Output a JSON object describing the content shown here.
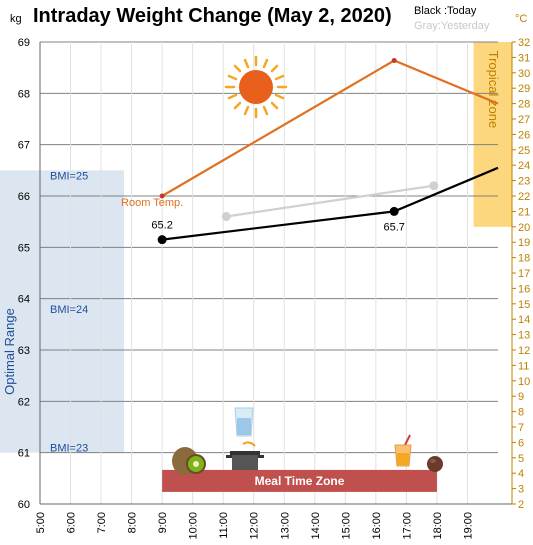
{
  "chart_data": {
    "type": "line",
    "title": "Intraday Weight Change (May 2, 2020)",
    "legend": {
      "today": "Black :Today",
      "yesterday": "Gray:Yesterday"
    },
    "left_axis": {
      "unit": "kg",
      "ylim": [
        60,
        69
      ],
      "ticks": [
        60,
        61,
        62,
        63,
        64,
        65,
        66,
        67,
        68,
        69
      ]
    },
    "right_axis": {
      "unit": "°C",
      "ylim": [
        2,
        32
      ],
      "ticks": [
        2,
        3,
        4,
        5,
        6,
        7,
        8,
        9,
        10,
        11,
        12,
        13,
        14,
        15,
        16,
        17,
        18,
        19,
        20,
        21,
        22,
        23,
        24,
        25,
        26,
        27,
        28,
        29,
        30,
        31,
        32
      ]
    },
    "x_axis": {
      "xlim": [
        5,
        20
      ],
      "ticks": [
        5,
        6,
        7,
        8,
        9,
        10,
        11,
        12,
        13,
        14,
        15,
        16,
        17,
        18,
        19
      ],
      "tick_labels": [
        "5:00",
        "6:00",
        "7:00",
        "8:00",
        "9:00",
        "10:00",
        "11:00",
        "12:00",
        "13:00",
        "14:00",
        "15:00",
        "16:00",
        "17:00",
        "18:00",
        "19:00"
      ]
    },
    "series": [
      {
        "name": "Black :Today",
        "axis": "left",
        "color": "#000000",
        "x": [
          9.0,
          16.6,
          20.0
        ],
        "y": [
          65.15,
          65.7,
          66.55
        ],
        "marker_count": 2
      },
      {
        "name": "Gray:Yesterday",
        "axis": "left",
        "color": "#d0d0d0",
        "x": [
          11.1,
          17.9
        ],
        "y": [
          65.6,
          66.2
        ],
        "marker_count": 2
      },
      {
        "name": "Room Temp.",
        "axis": "right",
        "color": "#e07020",
        "x": [
          9.0,
          16.6,
          20.0
        ],
        "y": [
          22.0,
          30.8,
          28.0
        ],
        "marker_count": 2
      }
    ],
    "data_labels": [
      {
        "text": "65.2",
        "x": 9.0,
        "y": 65.15
      },
      {
        "text": "65.7",
        "x": 16.6,
        "y": 65.7
      }
    ],
    "bands": {
      "optimal": {
        "label": "Optimal Range",
        "from": 61.0,
        "to": 66.5
      },
      "tropical": {
        "label": "Tropical zone",
        "from_temp": 20,
        "to_temp": 32
      }
    },
    "bmi_lines": [
      {
        "text": "BMI=25",
        "kg": 66.4
      },
      {
        "text": "BMI=24",
        "kg": 63.8
      },
      {
        "text": "BMI=23",
        "kg": 61.1
      }
    ],
    "room_temp_label": "Room Temp.",
    "meal_zone": {
      "label": "Meal Time Zone",
      "from": 9.0,
      "to": 18.0
    },
    "icons": [
      "sun-icon",
      "kiwi-icon",
      "water-glass-icon",
      "cooking-pot-icon",
      "juice-icon",
      "chocolate-icon"
    ],
    "colors": {
      "orange": "#e07020",
      "meal_zone": "#c0504d",
      "optimal_band": "#dce6f0",
      "tropical_band": "#fcd77d",
      "right_axis": "#c08000",
      "optimal_text": "#1f4e9b"
    }
  }
}
